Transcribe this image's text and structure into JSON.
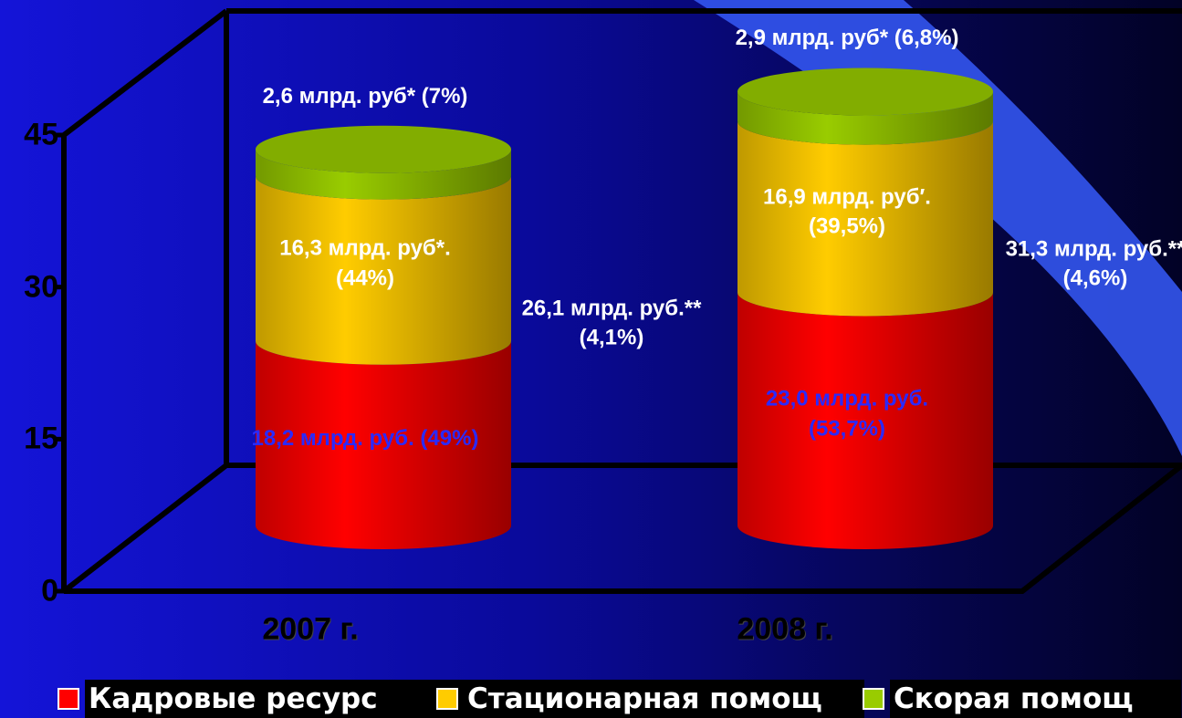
{
  "chart_data": {
    "type": "bar",
    "categories": [
      "2007 г.",
      "2008 г."
    ],
    "series": [
      {
        "name": "Кадровые ресурс",
        "color": "#ff0000",
        "label_color": "#2a2aff",
        "values": [
          18.2,
          23.0
        ],
        "value_labels": [
          "18,2 млрд. руб. (49%)",
          "23,0 млрд. руб. (53,7%)"
        ]
      },
      {
        "name": "Стационарная помощ",
        "color": "#ffcc00",
        "label_color": "#ffffff",
        "values": [
          16.3,
          16.9
        ],
        "value_labels": [
          "16,3 млрд. руб*. (44%)",
          "16,9 млрд. руб′. (39,5%)"
        ]
      },
      {
        "name": "Скорая помощ",
        "color": "#99cc00",
        "label_color": "#ffffff",
        "values": [
          2.6,
          2.9
        ],
        "value_labels": [
          "2,6 млрд. руб* (7%)",
          "2,9 млрд. руб* (6,8%)"
        ]
      }
    ],
    "annotations": [
      "26,1 млрд. руб.** (4,1%)",
      "31,3 млрд. руб.** (4,6%)"
    ],
    "ylim": [
      0,
      45
    ],
    "yticks": [
      0,
      15,
      30,
      45
    ]
  }
}
